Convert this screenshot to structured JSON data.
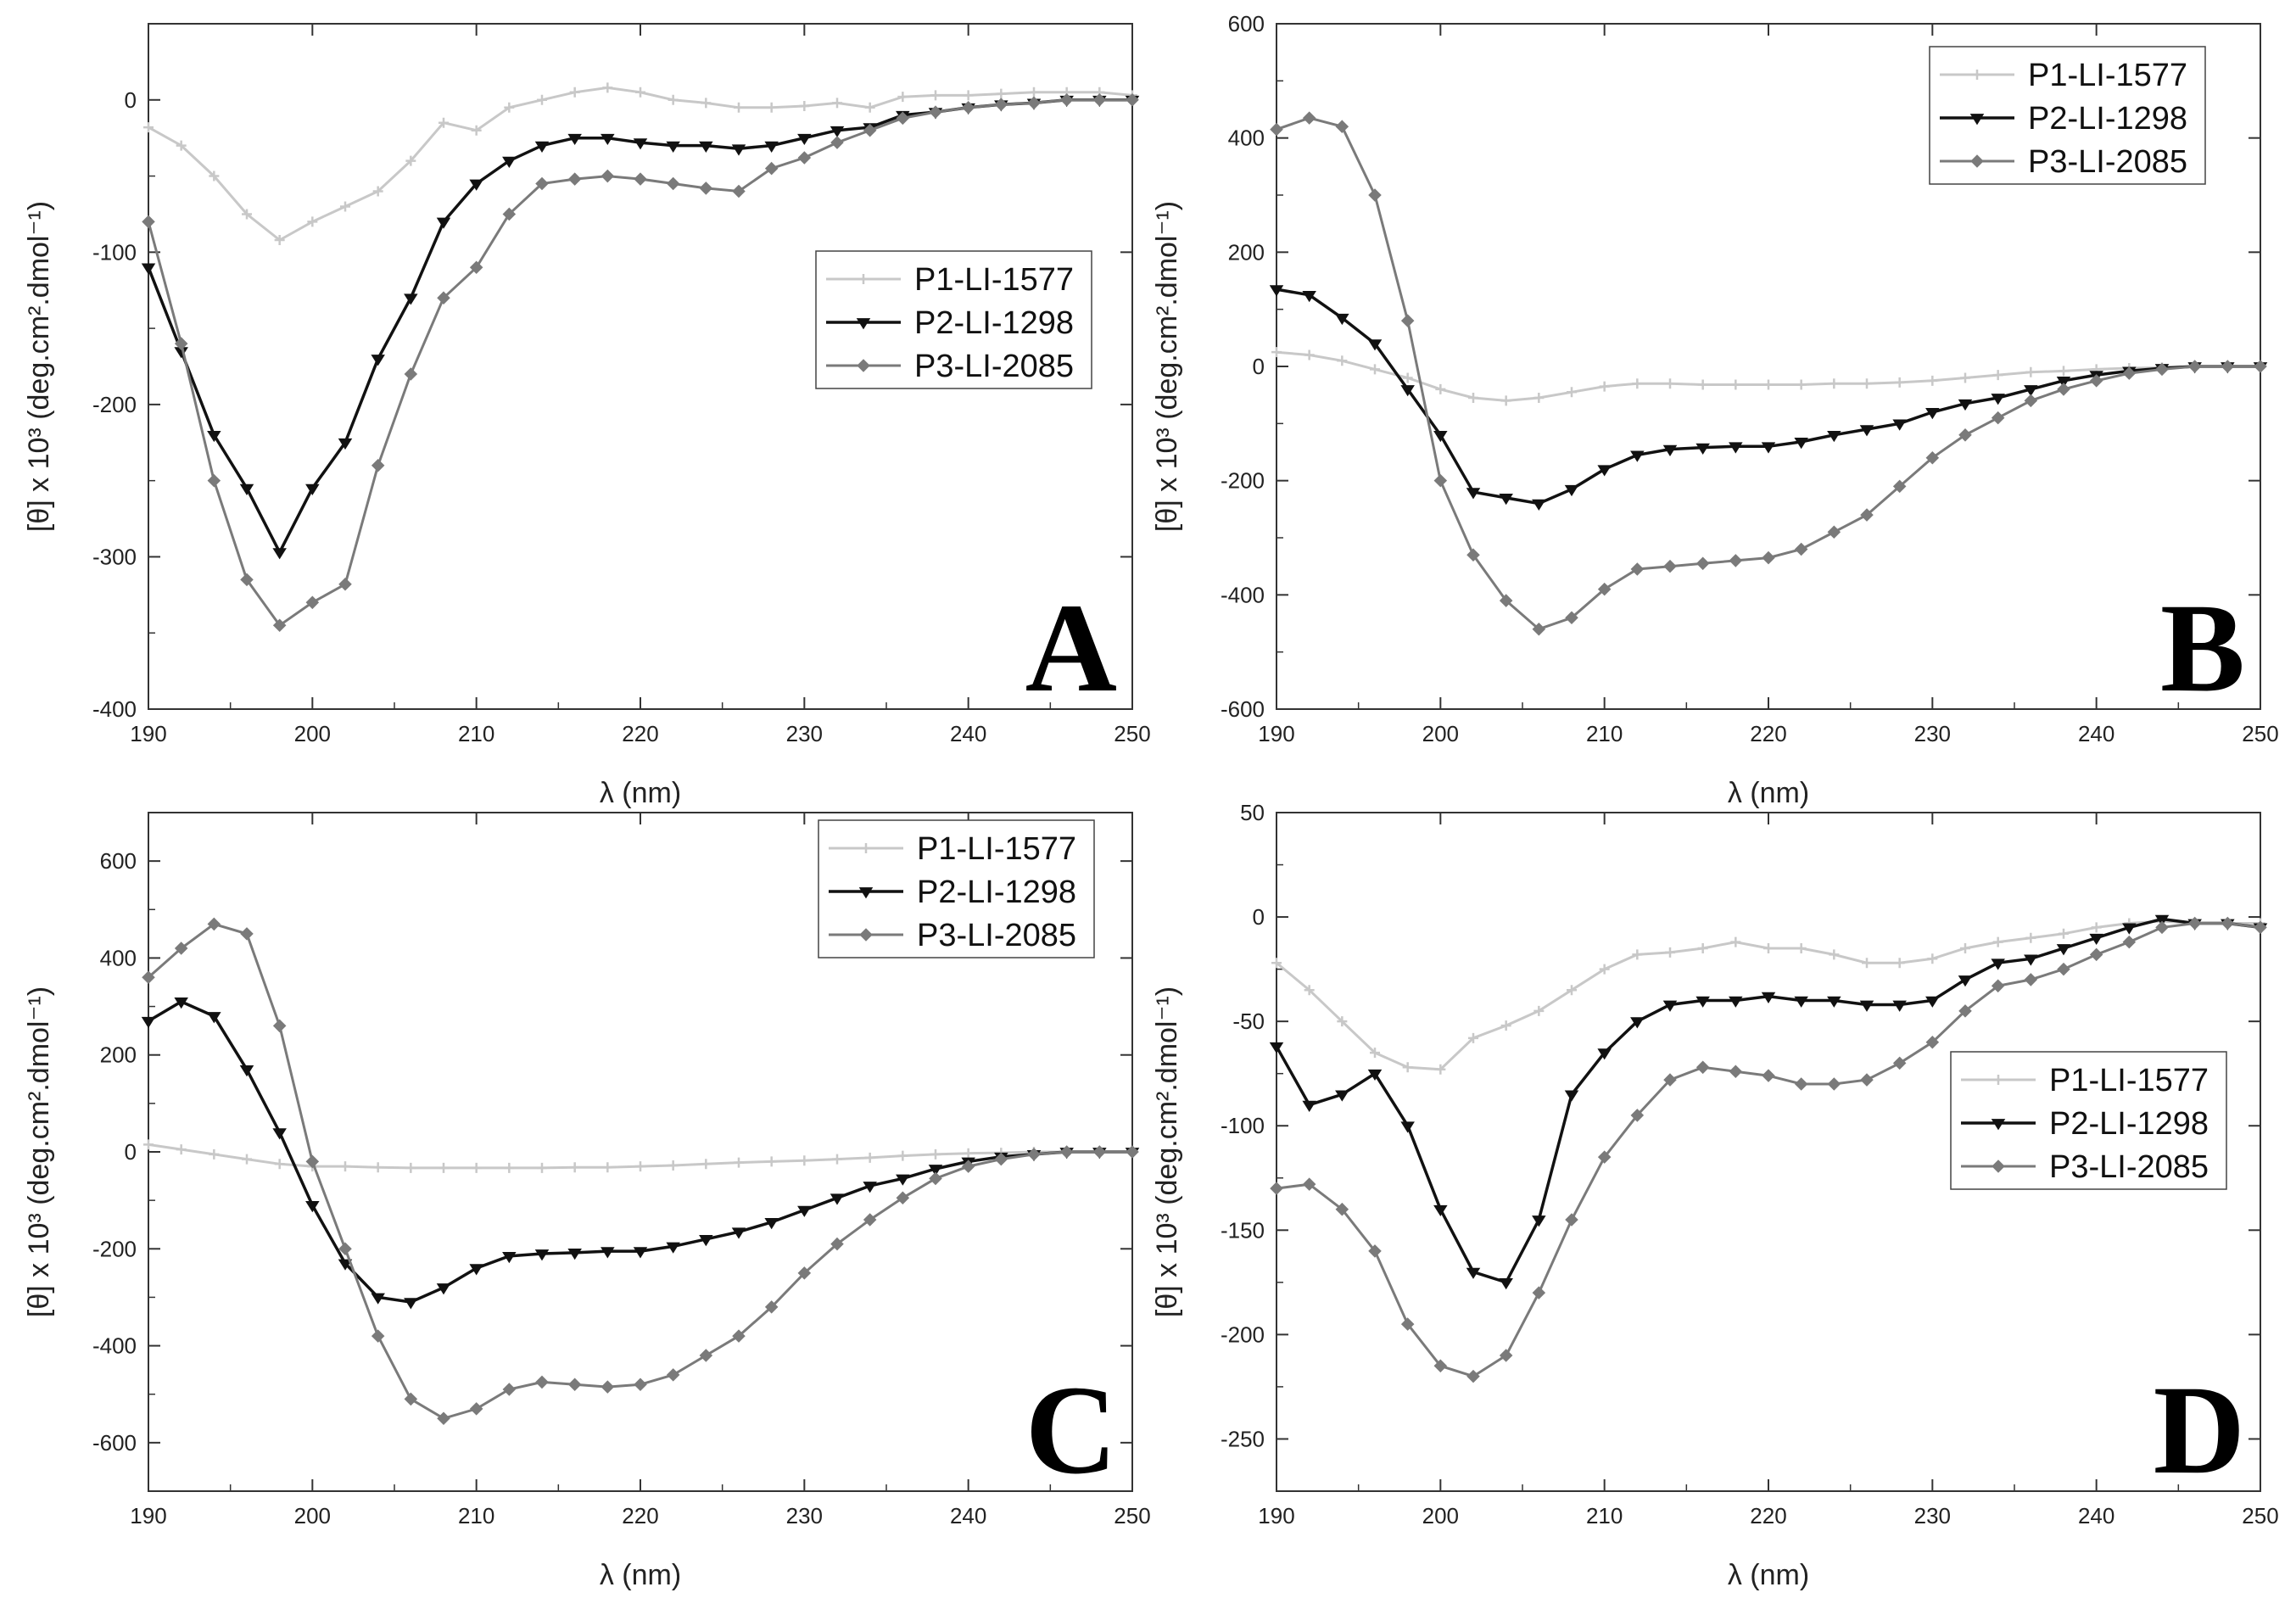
{
  "figure": {
    "xlabel": "λ (nm)",
    "ylabel": "[θ] x 10³ (deg.cm².dmol⁻¹)"
  },
  "series_colors": [
    "#c8c8c8",
    "#111111",
    "#7a7a7a"
  ],
  "chart_data": [
    {
      "type": "line",
      "panel": "A",
      "xlabel": "λ (nm)",
      "ylabel": "[θ] x 10³ (deg.cm².dmol⁻¹)",
      "xlim": [
        190,
        250
      ],
      "ylim": [
        -400,
        50
      ],
      "xticks": [
        "190",
        "200",
        "210",
        "220",
        "230",
        "240",
        "250"
      ],
      "yticks": [
        "0",
        "-100",
        "-200",
        "-300",
        "-400"
      ],
      "ytick_values": [
        0,
        -100,
        -200,
        -300,
        -400
      ],
      "legend": "center-right",
      "x": [
        190,
        192,
        194,
        196,
        198,
        200,
        202,
        204,
        206,
        208,
        210,
        212,
        214,
        216,
        218,
        220,
        222,
        224,
        226,
        228,
        230,
        232,
        234,
        236,
        238,
        240,
        242,
        244,
        246,
        248,
        250
      ],
      "series": [
        {
          "name": "P1-LI-1577",
          "values": [
            -18,
            -30,
            -50,
            -75,
            -92,
            -80,
            -70,
            -60,
            -40,
            -15,
            -20,
            -5,
            0,
            5,
            8,
            5,
            0,
            -2,
            -5,
            -5,
            -4,
            -2,
            -5,
            2,
            3,
            3,
            4,
            5,
            5,
            5,
            3
          ]
        },
        {
          "name": "P2-LI-1298",
          "values": [
            -110,
            -165,
            -220,
            -255,
            -297,
            -255,
            -225,
            -170,
            -130,
            -80,
            -55,
            -40,
            -30,
            -25,
            -25,
            -28,
            -30,
            -30,
            -32,
            -30,
            -25,
            -20,
            -18,
            -10,
            -8,
            -5,
            -3,
            -2,
            0,
            0,
            0
          ]
        },
        {
          "name": "P3-LI-2085",
          "values": [
            -80,
            -160,
            -250,
            -315,
            -345,
            -330,
            -318,
            -240,
            -180,
            -130,
            -110,
            -75,
            -55,
            -52,
            -50,
            -52,
            -55,
            -58,
            -60,
            -45,
            -38,
            -28,
            -20,
            -12,
            -8,
            -5,
            -3,
            -2,
            0,
            0,
            0
          ]
        }
      ]
    },
    {
      "type": "line",
      "panel": "B",
      "xlabel": "λ (nm)",
      "ylabel": "[θ] x 10³ (deg.cm².dmol⁻¹)",
      "xlim": [
        190,
        250
      ],
      "ylim": [
        -600,
        600
      ],
      "xticks": [
        "190",
        "200",
        "210",
        "220",
        "230",
        "240",
        "250"
      ],
      "yticks": [
        "600",
        "400",
        "200",
        "0",
        "-200",
        "-400",
        "-600"
      ],
      "ytick_values": [
        600,
        400,
        200,
        0,
        -200,
        -400,
        -600
      ],
      "legend": "top-right",
      "x": [
        190,
        192,
        194,
        196,
        198,
        200,
        202,
        204,
        206,
        208,
        210,
        212,
        214,
        216,
        218,
        220,
        222,
        224,
        226,
        228,
        230,
        232,
        234,
        236,
        238,
        240,
        242,
        244,
        246,
        248,
        250
      ],
      "series": [
        {
          "name": "P1-LI-1577",
          "values": [
            25,
            20,
            10,
            -5,
            -20,
            -40,
            -55,
            -60,
            -55,
            -45,
            -35,
            -30,
            -30,
            -32,
            -32,
            -32,
            -32,
            -30,
            -30,
            -28,
            -25,
            -20,
            -15,
            -10,
            -8,
            -5,
            -3,
            -2,
            0,
            0,
            0
          ]
        },
        {
          "name": "P2-LI-1298",
          "values": [
            135,
            125,
            85,
            40,
            -40,
            -120,
            -220,
            -230,
            -240,
            -215,
            -180,
            -155,
            -145,
            -142,
            -140,
            -140,
            -132,
            -120,
            -110,
            -100,
            -80,
            -65,
            -55,
            -40,
            -25,
            -15,
            -8,
            -3,
            0,
            0,
            0
          ]
        },
        {
          "name": "P3-LI-2085",
          "values": [
            415,
            435,
            420,
            300,
            80,
            -200,
            -330,
            -410,
            -460,
            -440,
            -390,
            -355,
            -350,
            -345,
            -340,
            -335,
            -320,
            -290,
            -260,
            -210,
            -160,
            -120,
            -90,
            -60,
            -40,
            -25,
            -12,
            -5,
            0,
            0,
            0
          ]
        }
      ]
    },
    {
      "type": "line",
      "panel": "C",
      "xlabel": "λ (nm)",
      "ylabel": "[θ] x 10³ (deg.cm².dmol⁻¹)",
      "xlim": [
        190,
        250
      ],
      "ylim": [
        -700,
        700
      ],
      "xticks": [
        "190",
        "200",
        "210",
        "220",
        "230",
        "240",
        "250"
      ],
      "yticks": [
        "600",
        "400",
        "200",
        "0",
        "-200",
        "-400",
        "-600"
      ],
      "ytick_values": [
        600,
        400,
        200,
        0,
        -200,
        -400,
        -600
      ],
      "legend": "top-right",
      "x": [
        190,
        192,
        194,
        196,
        198,
        200,
        202,
        204,
        206,
        208,
        210,
        212,
        214,
        216,
        218,
        220,
        222,
        224,
        226,
        228,
        230,
        232,
        234,
        236,
        238,
        240,
        242,
        244,
        246,
        248,
        250
      ],
      "series": [
        {
          "name": "P1-LI-1577",
          "values": [
            15,
            5,
            -5,
            -15,
            -25,
            -30,
            -30,
            -32,
            -33,
            -33,
            -33,
            -33,
            -33,
            -32,
            -32,
            -30,
            -28,
            -25,
            -22,
            -20,
            -18,
            -15,
            -12,
            -8,
            -5,
            -3,
            -2,
            0,
            0,
            0,
            0
          ]
        },
        {
          "name": "P2-LI-1298",
          "values": [
            270,
            310,
            280,
            170,
            40,
            -110,
            -230,
            -300,
            -310,
            -280,
            -240,
            -215,
            -210,
            -208,
            -205,
            -205,
            -195,
            -180,
            -165,
            -145,
            -120,
            -95,
            -70,
            -55,
            -35,
            -20,
            -10,
            -5,
            0,
            0,
            0
          ]
        },
        {
          "name": "P3-LI-2085",
          "values": [
            360,
            420,
            470,
            450,
            260,
            -20,
            -200,
            -380,
            -510,
            -550,
            -530,
            -490,
            -475,
            -480,
            -485,
            -480,
            -460,
            -420,
            -380,
            -320,
            -250,
            -190,
            -140,
            -95,
            -55,
            -30,
            -15,
            -5,
            0,
            0,
            0
          ]
        }
      ]
    },
    {
      "type": "line",
      "panel": "D",
      "xlabel": "λ (nm)",
      "ylabel": "[θ] x 10³ (deg.cm².dmol⁻¹)",
      "xlim": [
        190,
        250
      ],
      "ylim": [
        -275,
        50
      ],
      "xticks": [
        "190",
        "200",
        "210",
        "220",
        "230",
        "240",
        "250"
      ],
      "yticks": [
        "50",
        "0",
        "-50",
        "-100",
        "-150",
        "-200",
        "-250"
      ],
      "ytick_values": [
        50,
        0,
        -50,
        -100,
        -150,
        -200,
        -250
      ],
      "legend": "center-right",
      "x": [
        190,
        192,
        194,
        196,
        198,
        200,
        202,
        204,
        206,
        208,
        210,
        212,
        214,
        216,
        218,
        220,
        222,
        224,
        226,
        228,
        230,
        232,
        234,
        236,
        238,
        240,
        242,
        244,
        246,
        248,
        250
      ],
      "series": [
        {
          "name": "P1-LI-1577",
          "values": [
            -22,
            -35,
            -50,
            -65,
            -72,
            -73,
            -58,
            -52,
            -45,
            -35,
            -25,
            -18,
            -17,
            -15,
            -12,
            -15,
            -15,
            -18,
            -22,
            -22,
            -20,
            -15,
            -12,
            -10,
            -8,
            -5,
            -3,
            -2,
            -3,
            -3,
            -3
          ]
        },
        {
          "name": "P2-LI-1298",
          "values": [
            -62,
            -90,
            -85,
            -75,
            -100,
            -140,
            -170,
            -175,
            -145,
            -85,
            -65,
            -50,
            -42,
            -40,
            -40,
            -38,
            -40,
            -40,
            -42,
            -42,
            -40,
            -30,
            -22,
            -20,
            -15,
            -10,
            -5,
            -1,
            -3,
            -3,
            -5
          ]
        },
        {
          "name": "P3-LI-2085",
          "values": [
            -130,
            -128,
            -140,
            -160,
            -195,
            -215,
            -220,
            -210,
            -180,
            -145,
            -115,
            -95,
            -78,
            -72,
            -74,
            -76,
            -80,
            -80,
            -78,
            -70,
            -60,
            -45,
            -33,
            -30,
            -25,
            -18,
            -12,
            -5,
            -3,
            -3,
            -5
          ]
        }
      ]
    }
  ]
}
